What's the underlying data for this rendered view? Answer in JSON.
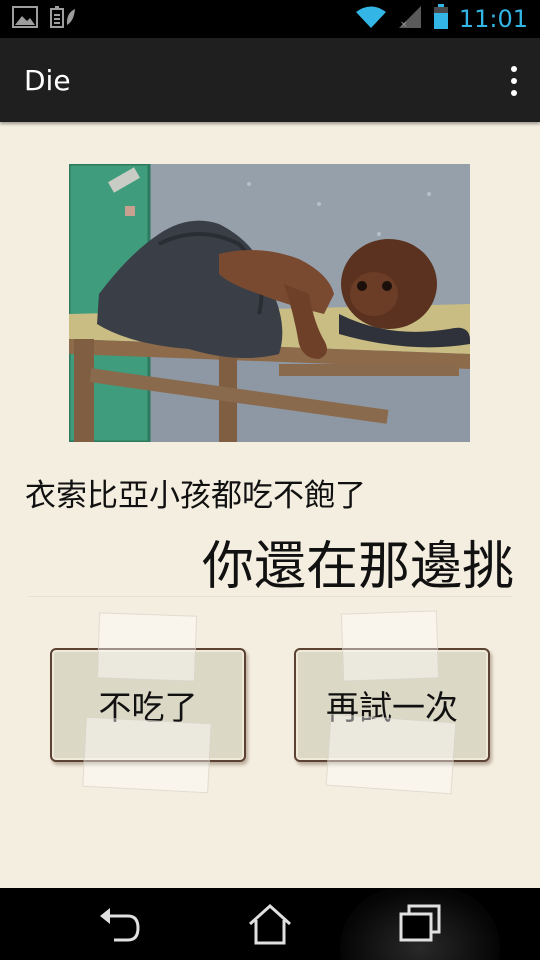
{
  "status_bar": {
    "time": "11:01",
    "icons": [
      "gallery-notification-icon",
      "battery-saver-icon",
      "wifi-icon",
      "signal-icon",
      "battery-icon"
    ],
    "time_color": "#33b5e5"
  },
  "action_bar": {
    "title": "Die",
    "overflow_icon": "overflow-menu-icon"
  },
  "content": {
    "line1": "衣索比亞小孩都吃不飽了",
    "line2": "你還在那邊挑",
    "buttons": {
      "stop_label": "不吃了",
      "retry_label": "再試一次"
    }
  },
  "nav_bar": {
    "icons": [
      "back-icon",
      "home-icon",
      "recent-apps-icon"
    ]
  }
}
